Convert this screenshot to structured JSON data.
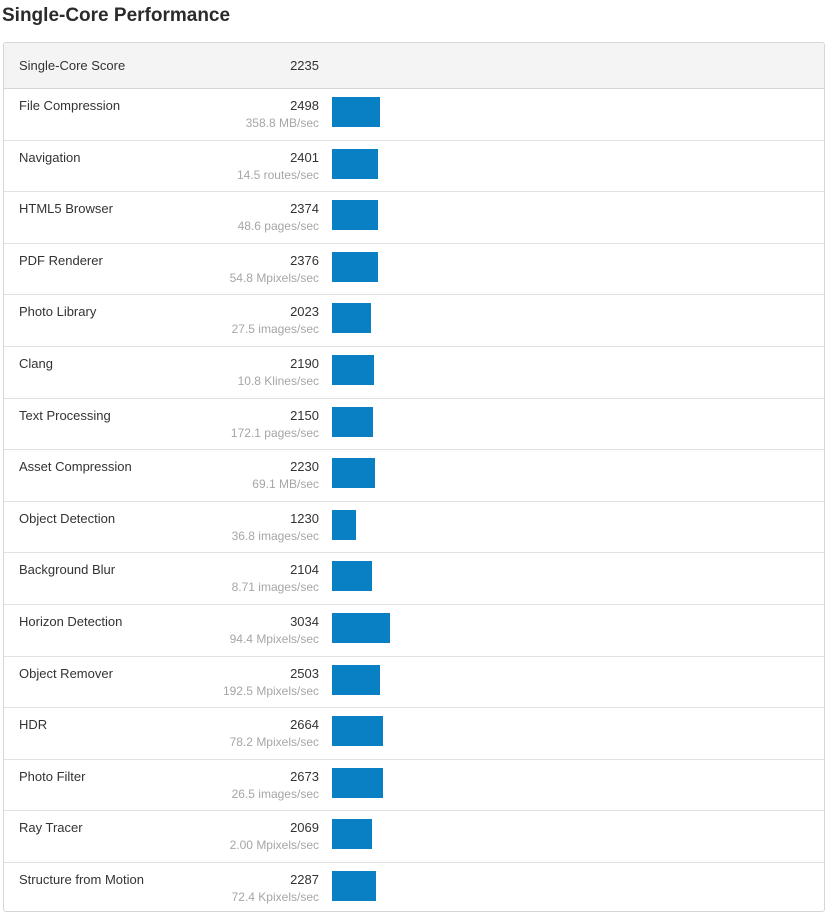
{
  "title": "Single-Core Performance",
  "header": {
    "label": "Single-Core Score",
    "score": "2235"
  },
  "colors": {
    "bar": "#0a80c4",
    "rate_text": "#a6a6a6"
  },
  "benchmarks": [
    {
      "name": "File Compression",
      "score": 2498,
      "rate": "358.8 MB/sec"
    },
    {
      "name": "Navigation",
      "score": 2401,
      "rate": "14.5 routes/sec"
    },
    {
      "name": "HTML5 Browser",
      "score": 2374,
      "rate": "48.6 pages/sec"
    },
    {
      "name": "PDF Renderer",
      "score": 2376,
      "rate": "54.8 Mpixels/sec"
    },
    {
      "name": "Photo Library",
      "score": 2023,
      "rate": "27.5 images/sec"
    },
    {
      "name": "Clang",
      "score": 2190,
      "rate": "10.8 Klines/sec"
    },
    {
      "name": "Text Processing",
      "score": 2150,
      "rate": "172.1 pages/sec"
    },
    {
      "name": "Asset Compression",
      "score": 2230,
      "rate": "69.1 MB/sec"
    },
    {
      "name": "Object Detection",
      "score": 1230,
      "rate": "36.8 images/sec"
    },
    {
      "name": "Background Blur",
      "score": 2104,
      "rate": "8.71 images/sec"
    },
    {
      "name": "Horizon Detection",
      "score": 3034,
      "rate": "94.4 Mpixels/sec"
    },
    {
      "name": "Object Remover",
      "score": 2503,
      "rate": "192.5 Mpixels/sec"
    },
    {
      "name": "HDR",
      "score": 2664,
      "rate": "78.2 Mpixels/sec"
    },
    {
      "name": "Photo Filter",
      "score": 2673,
      "rate": "26.5 images/sec"
    },
    {
      "name": "Ray Tracer",
      "score": 2069,
      "rate": "2.00 Mpixels/sec"
    },
    {
      "name": "Structure from Motion",
      "score": 2287,
      "rate": "72.4 Kpixels/sec"
    }
  ]
}
